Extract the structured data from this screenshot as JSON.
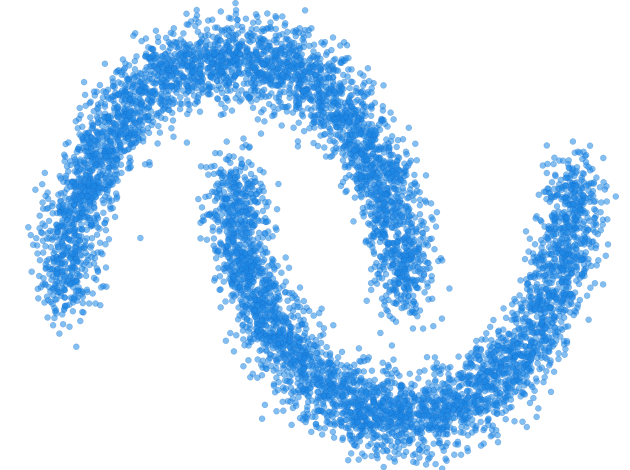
{
  "chart_data": {
    "type": "scatter",
    "title": "",
    "xlabel": "",
    "ylabel": "",
    "grid": false,
    "axes_visible": false,
    "legend": "none",
    "xlim": [
      -1.15,
      2.15
    ],
    "ylim": [
      -0.62,
      1.12
    ],
    "point_color": "#1E88E5",
    "point_edge_color": "#1565C0",
    "series": [
      {
        "shape": "upper-moon",
        "center": [
          0.0,
          0.0
        ],
        "radius": 1.0,
        "angle_range_deg": [
          0,
          180
        ],
        "noise_sd": 0.09,
        "n_points": 3500
      },
      {
        "shape": "lower-moon",
        "center": [
          1.0,
          0.5
        ],
        "radius": 1.0,
        "angle_range_deg": [
          180,
          360
        ],
        "noise_sd": 0.09,
        "n_points": 3500
      }
    ]
  }
}
